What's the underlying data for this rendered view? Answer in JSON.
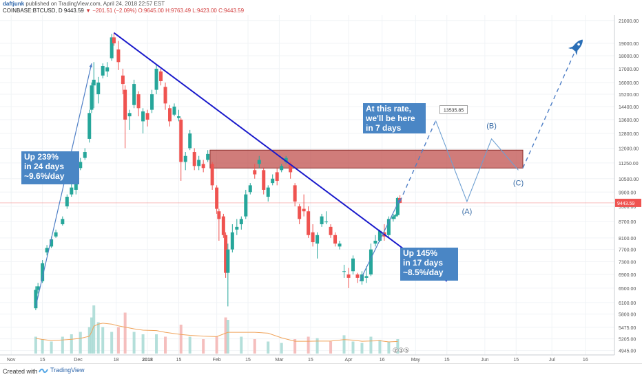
{
  "header": {
    "user": "daftjunk",
    "published": "published on TradingView.com, April 24, 2018 22:57 EST",
    "symbol": "COINBASE:BTCUSD, D",
    "last": "9443.59",
    "change": "−201.51 (−2.09%)",
    "open": "O:9645.00",
    "high": "H:9763.49",
    "low": "L:9423.00",
    "close": "C:9443.59"
  },
  "footer": {
    "created_with": "Created with",
    "brand": "TradingView"
  },
  "colors": {
    "up": "#26a69a",
    "down": "#ef5350",
    "trendline": "#1a1acb",
    "annotation_bg": "#4a86c5",
    "resistance_zone": "#c0504d",
    "projection": "#4f7fc6"
  },
  "icons": {
    "target": "rocket-icon"
  },
  "chart_data": {
    "type": "candlestick",
    "price_scale_ticks": [
      "21000.00",
      "19000.00",
      "18000.00",
      "17000.00",
      "16000.00",
      "15200.00",
      "14400.00",
      "13600.00",
      "12800.00",
      "12000.00",
      "11250.00",
      "10500.00",
      "9900.00",
      "9300.00",
      "8700.00",
      "8100.00",
      "7700.00",
      "7300.00",
      "6900.00",
      "6500.00",
      "6100.00",
      "5800.00",
      "5475.00",
      "5205.00",
      "4945.00"
    ],
    "time_ticks": [
      "Nov",
      "15",
      "Dec",
      "18",
      "2018",
      "15",
      "Feb",
      "15",
      "Mar",
      "15",
      "Apr",
      "16",
      "May",
      "15",
      "Jun",
      "15",
      "Jul",
      "16"
    ],
    "last_price_label": "9443.59",
    "x_range": [
      "2017-10-27",
      "2018-07-29"
    ],
    "y_range": [
      4850,
      21500
    ],
    "y_scale": "log",
    "candles": [
      [
        "2017-11-12",
        5950,
        6550,
        5900,
        6450
      ],
      [
        "2017-11-13",
        6450,
        6650,
        6350,
        6550
      ],
      [
        "2017-11-15",
        6700,
        7350,
        6650,
        7250
      ],
      [
        "2017-11-17",
        7600,
        7850,
        7500,
        7750
      ],
      [
        "2017-11-19",
        7800,
        8150,
        7750,
        8050
      ],
      [
        "2017-11-21",
        8150,
        8400,
        8100,
        8300
      ],
      [
        "2017-11-24",
        8600,
        8900,
        8550,
        8800
      ],
      [
        "2017-11-26",
        9300,
        9800,
        9200,
        9700
      ],
      [
        "2017-11-28",
        9800,
        10300,
        9700,
        10100
      ],
      [
        "2017-11-30",
        10000,
        11200,
        9800,
        11000
      ],
      [
        "2017-12-02",
        11000,
        11500,
        10900,
        11300
      ],
      [
        "2017-12-04",
        11500,
        12000,
        11400,
        11800
      ],
      [
        "2017-12-06",
        12500,
        14200,
        12300,
        14000
      ],
      [
        "2017-12-07",
        14200,
        16000,
        14000,
        15800
      ],
      [
        "2017-12-08",
        15800,
        17500,
        14300,
        16200
      ],
      [
        "2017-12-10",
        15200,
        16400,
        14600,
        16000
      ],
      [
        "2017-12-12",
        16500,
        17400,
        16300,
        17200
      ],
      [
        "2017-12-14",
        16800,
        17500,
        16400,
        17100
      ],
      [
        "2017-12-16",
        17800,
        19800,
        17600,
        19500
      ],
      [
        "2017-12-17",
        19500,
        19900,
        18800,
        19000
      ],
      [
        "2017-12-19",
        18500,
        19200,
        16900,
        17500
      ],
      [
        "2017-12-21",
        16500,
        17000,
        15200,
        15900
      ],
      [
        "2017-12-22",
        15500,
        15800,
        12000,
        13600
      ],
      [
        "2017-12-24",
        13800,
        14200,
        13000,
        14000
      ],
      [
        "2017-12-26",
        14500,
        16200,
        14300,
        15900
      ],
      [
        "2017-12-28",
        15200,
        15400,
        13800,
        14300
      ],
      [
        "2017-12-30",
        13500,
        14300,
        12800,
        14100
      ],
      [
        "2018-01-01",
        14000,
        14200,
        13200,
        13600
      ],
      [
        "2018-01-03",
        14200,
        15500,
        14000,
        15200
      ],
      [
        "2018-01-05",
        15500,
        17300,
        15200,
        17000
      ],
      [
        "2018-01-07",
        16800,
        17000,
        15800,
        16100
      ],
      [
        "2018-01-09",
        15700,
        16000,
        14200,
        14600
      ],
      [
        "2018-01-11",
        14300,
        14500,
        13200,
        13500
      ],
      [
        "2018-01-13",
        13900,
        14600,
        13800,
        14400
      ],
      [
        "2018-01-15",
        13700,
        14200,
        13500,
        13800
      ],
      [
        "2018-01-16",
        13600,
        13700,
        10400,
        11300
      ],
      [
        "2018-01-18",
        11300,
        11800,
        10900,
        11600
      ],
      [
        "2018-01-20",
        12000,
        13000,
        11900,
        12800
      ],
      [
        "2018-01-22",
        11800,
        12000,
        10900,
        11100
      ],
      [
        "2018-01-24",
        11100,
        11600,
        10900,
        11400
      ],
      [
        "2018-01-26",
        11200,
        11400,
        10800,
        11000
      ],
      [
        "2018-01-28",
        11400,
        11900,
        11300,
        11700
      ],
      [
        "2018-01-30",
        11200,
        11300,
        10000,
        10200
      ],
      [
        "2018-02-01",
        10100,
        10200,
        9000,
        9200
      ],
      [
        "2018-02-02",
        9100,
        9200,
        8000,
        8800
      ],
      [
        "2018-02-04",
        8900,
        9000,
        8100,
        8200
      ],
      [
        "2018-02-05",
        8200,
        8300,
        6800,
        6950
      ],
      [
        "2018-02-06",
        6950,
        7900,
        6000,
        7700
      ],
      [
        "2018-02-08",
        7700,
        8600,
        7600,
        8300
      ],
      [
        "2018-02-10",
        8400,
        8800,
        8200,
        8500
      ],
      [
        "2018-02-12",
        8600,
        8900,
        8400,
        8800
      ],
      [
        "2018-02-14",
        8900,
        10000,
        8800,
        9800
      ],
      [
        "2018-02-16",
        9900,
        10300,
        9800,
        10200
      ],
      [
        "2018-02-18",
        10900,
        11200,
        10500,
        10700
      ],
      [
        "2018-02-20",
        11200,
        11600,
        11000,
        11400
      ],
      [
        "2018-02-22",
        10900,
        11000,
        9800,
        10000
      ],
      [
        "2018-02-24",
        9700,
        10200,
        9500,
        10100
      ],
      [
        "2018-02-26",
        10300,
        10700,
        10200,
        10500
      ],
      [
        "2018-02-28",
        10800,
        11000,
        10200,
        10400
      ],
      [
        "2018-03-02",
        10900,
        11200,
        10800,
        11100
      ],
      [
        "2018-03-04",
        11300,
        11600,
        11200,
        11500
      ],
      [
        "2018-03-06",
        11200,
        11300,
        10500,
        10800
      ],
      [
        "2018-03-08",
        10200,
        10300,
        9300,
        9500
      ],
      [
        "2018-03-10",
        9300,
        9400,
        8600,
        8800
      ],
      [
        "2018-03-12",
        9200,
        9800,
        8900,
        9100
      ],
      [
        "2018-03-14",
        9100,
        9300,
        8100,
        8200
      ],
      [
        "2018-03-16",
        8300,
        8600,
        7800,
        7950
      ],
      [
        "2018-03-18",
        7900,
        8300,
        7400,
        8200
      ],
      [
        "2018-03-20",
        8600,
        9000,
        8500,
        8900
      ],
      [
        "2018-03-22",
        8700,
        9100,
        8600,
        8700
      ],
      [
        "2018-03-24",
        8500,
        8600,
        8100,
        8200
      ],
      [
        "2018-03-26",
        8200,
        8300,
        7800,
        7900
      ],
      [
        "2018-03-28",
        7800,
        8000,
        7700,
        7900
      ],
      [
        "2018-03-30",
        7000,
        7200,
        6800,
        7000
      ],
      [
        "2018-04-01",
        6900,
        7100,
        6500,
        6800
      ],
      [
        "2018-04-03",
        7000,
        7500,
        6900,
        7400
      ],
      [
        "2018-04-05",
        6900,
        6950,
        6650,
        6800
      ],
      [
        "2018-04-07",
        6700,
        7000,
        6600,
        6900
      ],
      [
        "2018-04-09",
        6800,
        7150,
        6650,
        6850
      ],
      [
        "2018-04-11",
        6900,
        7900,
        6850,
        7700
      ],
      [
        "2018-04-13",
        7900,
        8200,
        7800,
        8000
      ],
      [
        "2018-04-15",
        8000,
        8400,
        7950,
        8350
      ],
      [
        "2018-04-17",
        8300,
        8600,
        8000,
        8150
      ],
      [
        "2018-04-19",
        8200,
        8900,
        8100,
        8800
      ],
      [
        "2018-04-21",
        8800,
        9000,
        8700,
        8900
      ],
      [
        "2018-04-22",
        8900,
        9000,
        8800,
        8950
      ],
      [
        "2018-04-23",
        8950,
        9700,
        8900,
        9645
      ],
      [
        "2018-04-24",
        9645,
        9763.49,
        9423,
        9443.59
      ]
    ],
    "volume_scale_note": "relative",
    "volume": [
      [
        "2017-11-12",
        0.35
      ],
      [
        "2017-11-15",
        0.3
      ],
      [
        "2017-11-19",
        0.25
      ],
      [
        "2017-11-24",
        0.35
      ],
      [
        "2017-11-28",
        0.4
      ],
      [
        "2017-12-02",
        0.45
      ],
      [
        "2017-12-06",
        0.55
      ],
      [
        "2017-12-07",
        0.75
      ],
      [
        "2017-12-08",
        1.0
      ],
      [
        "2017-12-10",
        0.65
      ],
      [
        "2017-12-12",
        0.55
      ],
      [
        "2017-12-16",
        0.45
      ],
      [
        "2017-12-19",
        0.55
      ],
      [
        "2017-12-22",
        0.85
      ],
      [
        "2017-12-26",
        0.45
      ],
      [
        "2017-12-30",
        0.4
      ],
      [
        "2018-01-05",
        0.4
      ],
      [
        "2018-01-09",
        0.35
      ],
      [
        "2018-01-16",
        0.6
      ],
      [
        "2018-01-20",
        0.35
      ],
      [
        "2018-01-26",
        0.3
      ],
      [
        "2018-02-01",
        0.35
      ],
      [
        "2018-02-05",
        0.75
      ],
      [
        "2018-02-06",
        0.7
      ],
      [
        "2018-02-12",
        0.35
      ],
      [
        "2018-02-18",
        0.3
      ],
      [
        "2018-02-24",
        0.25
      ],
      [
        "2018-03-02",
        0.22
      ],
      [
        "2018-03-08",
        0.3
      ],
      [
        "2018-03-14",
        0.35
      ],
      [
        "2018-03-18",
        0.32
      ],
      [
        "2018-03-24",
        0.25
      ],
      [
        "2018-03-30",
        0.38
      ],
      [
        "2018-04-03",
        0.25
      ],
      [
        "2018-04-07",
        0.22
      ],
      [
        "2018-04-11",
        0.35
      ],
      [
        "2018-04-15",
        0.28
      ],
      [
        "2018-04-19",
        0.25
      ],
      [
        "2018-04-23",
        0.3
      ]
    ],
    "last_price": 9443.59,
    "trendline": {
      "from": [
        "2017-12-17",
        19900
      ],
      "to": [
        "2018-05-15",
        6700
      ]
    },
    "resistance_zone": {
      "x_start": "2018-01-29",
      "x_end": "2018-06-18",
      "y_low": 11000,
      "y_high": 11900
    },
    "rally_arrows": [
      {
        "from": [
          "2017-11-12",
          6000
        ],
        "to": [
          "2017-12-07",
          17400
        ]
      },
      {
        "from": [
          "2018-04-06",
          6700
        ],
        "to": [
          "2018-04-24",
          9600
        ]
      }
    ],
    "projection_dashed": [
      {
        "from": [
          "2018-04-24",
          9500
        ],
        "to": [
          "2018-05-10",
          13540
        ]
      },
      {
        "from": [
          "2018-06-18",
          11000
        ],
        "to": [
          "2018-07-11",
          18200
        ]
      }
    ],
    "projection_path": [
      [
        "2018-05-10",
        13540
      ],
      [
        "2018-05-24",
        9500
      ],
      [
        "2018-06-04",
        12500
      ],
      [
        "2018-06-16",
        10900
      ]
    ],
    "price_callout": {
      "text": "13535.85",
      "at": [
        "2018-05-10",
        13540
      ]
    },
    "wave_labels": [
      {
        "text": "(A)",
        "at": [
          "2018-05-24",
          9000
        ]
      },
      {
        "text": "(B)",
        "at": [
          "2018-06-04",
          13100
        ]
      },
      {
        "text": "(C)",
        "at": [
          "2018-06-16",
          10200
        ]
      }
    ],
    "annotations": [
      {
        "lines": [
          "Up 239%",
          "in 24 days",
          "~9.6%/day"
        ]
      },
      {
        "lines": [
          "Up 145%",
          "in 17 days",
          "~8.5%/day"
        ]
      },
      {
        "lines": [
          "At this rate,",
          "we'll be here",
          "in 7 days"
        ]
      }
    ],
    "event_badges": [
      "2",
      "1",
      "5"
    ]
  }
}
